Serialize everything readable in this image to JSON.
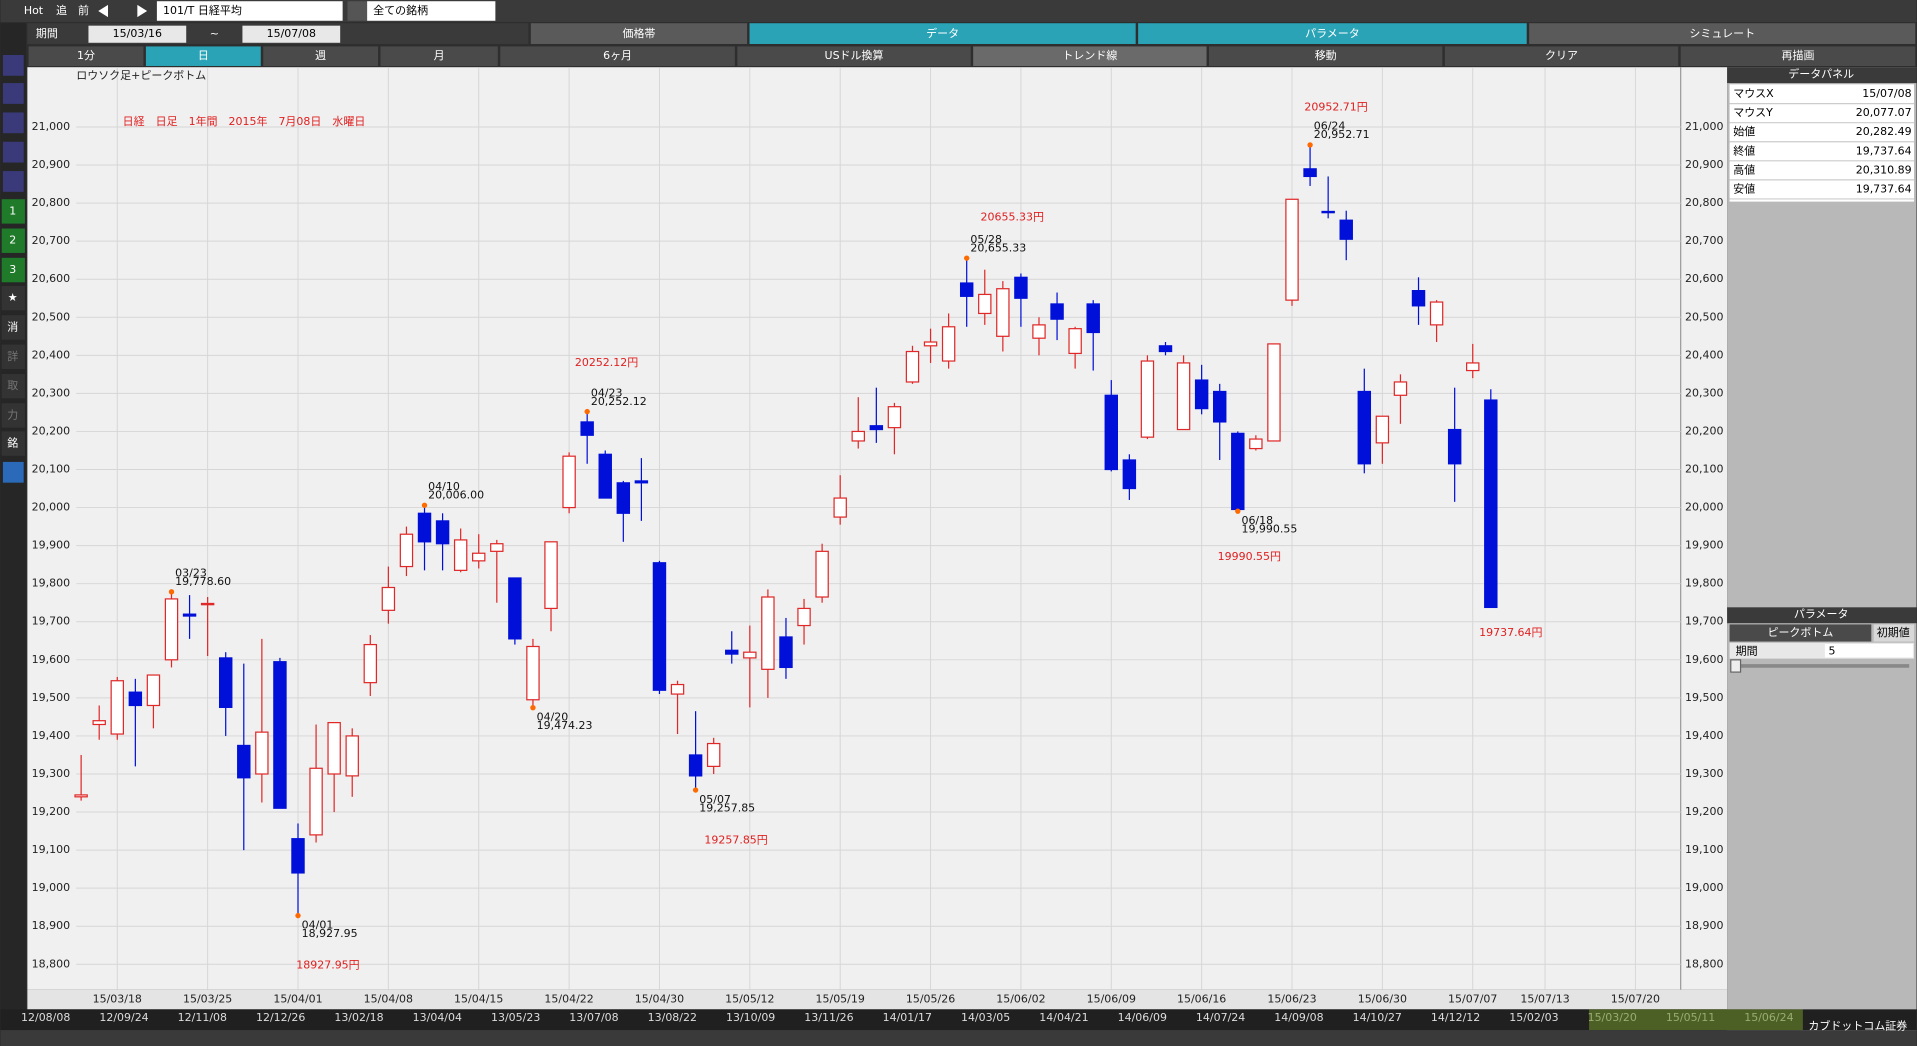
{
  "toolbar": {
    "hot": "Hot",
    "add": "追",
    "prev": "前",
    "symbol": "101/T 日経平均",
    "filter": "全ての銘柄",
    "tabs": [
      "価格帯",
      "データ",
      "パラメータ",
      "シミュレート"
    ],
    "period_label": "期間",
    "from": "15/03/16",
    "tilde": "~",
    "to": "15/07/08",
    "buttons": [
      "1分",
      "日",
      "週",
      "月",
      "6ヶ月",
      "USドル換算",
      "トレンド線",
      "移動",
      "クリア",
      "再描画"
    ]
  },
  "sidebar": [
    "1",
    "2",
    "3",
    "★",
    "消",
    "詳",
    "取",
    "力",
    "銘"
  ],
  "data_panel": {
    "title": "データパネル",
    "rows": [
      [
        "マウスX",
        "15/07/08"
      ],
      [
        "マウスY",
        "20,077.07"
      ],
      [
        "始値",
        "20,282.49"
      ],
      [
        "終値",
        "19,737.64"
      ],
      [
        "高値",
        "20,310.89"
      ],
      [
        "安値",
        "19,737.64"
      ]
    ]
  },
  "param_panel": {
    "title": "パラメータ",
    "name": "ピークボトム",
    "reset": "初期値",
    "label": "期間",
    "value": "5"
  },
  "timeline": [
    "12/08/08",
    "12/09/24",
    "12/11/08",
    "12/12/26",
    "13/02/18",
    "13/04/04",
    "13/05/23",
    "13/07/08",
    "13/08/22",
    "13/10/09",
    "13/11/26",
    "14/01/17",
    "14/03/05",
    "14/04/21",
    "14/06/09",
    "14/07/24",
    "14/09/08",
    "14/10/27",
    "14/12/12",
    "15/02/03",
    "15/03/20",
    "15/05/11",
    "15/06/24"
  ],
  "footer": "カブドットコム証券",
  "chart_data": {
    "type": "candlestick",
    "title": "日経　日足　1年間　2015年　7月08日　水曜日",
    "subtitle": "ロウソク足+ピークボトム",
    "categories": [
      null,
      null,
      "15/03/18",
      null,
      null,
      null,
      null,
      "15/03/25",
      null,
      null,
      null,
      null,
      "15/04/01",
      null,
      null,
      null,
      null,
      "15/04/08",
      null,
      null,
      null,
      null,
      "15/04/15",
      null,
      null,
      null,
      null,
      "15/04/22",
      null,
      null,
      null,
      null,
      "15/04/30",
      null,
      null,
      null,
      null,
      "15/05/12",
      null,
      null,
      null,
      null,
      "15/05/19",
      null,
      null,
      null,
      null,
      "15/05/26",
      null,
      null,
      null,
      null,
      "15/06/02",
      null,
      null,
      null,
      null,
      "15/06/09",
      null,
      null,
      null,
      null,
      "15/06/16",
      null,
      null,
      null,
      null,
      "15/06/23",
      null,
      null,
      null,
      null,
      "15/06/30",
      null,
      null,
      null,
      null,
      "15/07/07",
      null,
      null,
      null,
      "15/07/13",
      null,
      null,
      null,
      null,
      "15/07/20",
      null,
      null
    ],
    "open": [
      19240,
      19430,
      19405,
      19515,
      19480,
      19600,
      19720,
      19745,
      19605,
      19375,
      19300,
      19595,
      19130,
      19140,
      19300,
      19295,
      19540,
      19730,
      19845,
      19985,
      19965,
      19835,
      19860,
      19885,
      19815,
      19495,
      19735,
      20000,
      20225,
      20140,
      20065,
      20070,
      19855,
      19510,
      19350,
      19320,
      19625,
      19605,
      19575,
      19660,
      19690,
      19765,
      19975,
      20175,
      20215,
      20210,
      20330,
      20425,
      20385,
      20590,
      20510,
      20450,
      20605,
      20445,
      20535,
      20405,
      20535,
      20295,
      20125,
      20185,
      20425,
      20205,
      20335,
      20305,
      20195,
      20155,
      20175,
      20545,
      20890,
      20778,
      20755,
      20305,
      20170,
      20295,
      20570,
      20480,
      20205,
      20360,
      20282.49,
      null,
      null,
      null,
      null,
      null,
      null,
      null,
      null,
      null,
      null
    ],
    "high": [
      19350,
      19480,
      19555,
      19550,
      19560,
      19778.6,
      19770,
      19765,
      19620,
      19590,
      19655,
      19605,
      19170,
      19430,
      19435,
      19420,
      19665,
      19845,
      19950,
      20006.0,
      19985,
      19945,
      19930,
      19915,
      19815,
      19655,
      19910,
      20145,
      20252.12,
      20150,
      20070,
      20130,
      19860,
      19545,
      19465,
      19395,
      19675,
      19690,
      19785,
      19710,
      19760,
      19905,
      20085,
      20290,
      20315,
      20275,
      20425,
      20470,
      20510,
      20655.33,
      20625,
      20595,
      20615,
      20500,
      20565,
      20475,
      20545,
      20335,
      20140,
      20400,
      20435,
      20400,
      20375,
      20325,
      20200,
      20190,
      20430,
      20810,
      20952.71,
      20870,
      20780,
      20365,
      20240,
      20350,
      20605,
      20545,
      20315,
      20430,
      20310.89,
      null,
      null,
      null,
      null,
      null,
      null,
      null,
      null,
      null,
      null
    ],
    "low": [
      19230,
      19390,
      19390,
      19320,
      19420,
      19580,
      19655,
      19610,
      19400,
      19100,
      19225,
      19210,
      18927.95,
      19120,
      19200,
      19240,
      19505,
      19695,
      19820,
      19835,
      19835,
      19830,
      19840,
      19750,
      19640,
      19474.23,
      19675,
      19985,
      20115,
      20025,
      19910,
      19965,
      19510,
      19405,
      19257.85,
      19300,
      19590,
      19475,
      19500,
      19550,
      19640,
      19750,
      19955,
      20155,
      20170,
      20140,
      20325,
      20380,
      20365,
      20475,
      20480,
      20410,
      20475,
      20400,
      20440,
      20365,
      20360,
      20095,
      20020,
      20180,
      20400,
      20205,
      20245,
      20125,
      19990.55,
      20150,
      20175,
      20530,
      20845,
      20760,
      20650,
      20090,
      20115,
      20220,
      20480,
      20435,
      20015,
      20340,
      19737.64,
      null,
      null,
      null,
      null,
      null,
      null,
      null,
      null,
      null,
      null
    ],
    "close": [
      19245,
      19440,
      19545,
      19480,
      19560,
      19760,
      19715,
      19748,
      19475,
      19290,
      19410,
      19210,
      19040,
      19315,
      19435,
      19400,
      19640,
      19790,
      19930,
      19910,
      19905,
      19915,
      19880,
      19905,
      19655,
      19635,
      19910,
      20135,
      20190,
      20025,
      19985,
      20065,
      19520,
      19535,
      19295,
      19380,
      19615,
      19620,
      19765,
      19580,
      19735,
      19885,
      20025,
      20200,
      20205,
      20265,
      20410,
      20435,
      20475,
      20555,
      20560,
      20575,
      20550,
      20480,
      20495,
      20470,
      20460,
      20100,
      20050,
      20385,
      20410,
      20380,
      20260,
      20225,
      19995,
      20180,
      20430,
      20810,
      20870,
      20775,
      20705,
      20115,
      20240,
      20330,
      20530,
      20540,
      20115,
      20380,
      19737.64,
      null,
      null,
      null,
      null,
      null,
      null,
      null,
      null,
      null,
      null
    ],
    "up_color": "#e02828",
    "down_color": "#0010d8",
    "ylim": [
      18733,
      21157
    ],
    "yticks": [
      {
        "value": 18800,
        "label": "18,800"
      },
      {
        "value": 18900,
        "label": "18,900"
      },
      {
        "value": 19000,
        "label": "19,000"
      },
      {
        "value": 19100,
        "label": "19,100"
      },
      {
        "value": 19200,
        "label": "19,200"
      },
      {
        "value": 19300,
        "label": "19,300"
      },
      {
        "value": 19400,
        "label": "19,400"
      },
      {
        "value": 19500,
        "label": "19,500"
      },
      {
        "value": 19600,
        "label": "19,600"
      },
      {
        "value": 19700,
        "label": "19,700"
      },
      {
        "value": 19800,
        "label": "19,800"
      },
      {
        "value": 19900,
        "label": "19,900"
      },
      {
        "value": 20000,
        "label": "20,000"
      },
      {
        "value": 20100,
        "label": "20,100"
      },
      {
        "value": 20200,
        "label": "20,200"
      },
      {
        "value": 20300,
        "label": "20,300"
      },
      {
        "value": 20400,
        "label": "20,400"
      },
      {
        "value": 20500,
        "label": "20,500"
      },
      {
        "value": 20600,
        "label": "20,600"
      },
      {
        "value": 20700,
        "label": "20,700"
      },
      {
        "value": 20800,
        "label": "20,800"
      },
      {
        "value": 20900,
        "label": "20,900"
      },
      {
        "value": 21000,
        "label": "21,000"
      }
    ],
    "grid": true,
    "peak_labels": [
      {
        "date": "03/23",
        "value": "19,778.60"
      },
      {
        "date": "04/01",
        "value": "18,927.95"
      },
      {
        "date": "04/10",
        "value": "20,006.00"
      },
      {
        "date": "04/20",
        "value": "19,474.23"
      },
      {
        "date": "04/23",
        "value": "20,252.12"
      },
      {
        "date": "05/07",
        "value": "19,257.85"
      },
      {
        "date": "05/28",
        "value": "20,655.33"
      },
      {
        "date": "06/18",
        "value": "19,990.55"
      },
      {
        "date": "06/24",
        "value": "20,952.71"
      }
    ],
    "annotations": [
      "18927.95円",
      "20252.12円",
      "19257.85円",
      "20655.33円",
      "20952.71円",
      "19990.55円",
      "19737.64円"
    ]
  }
}
